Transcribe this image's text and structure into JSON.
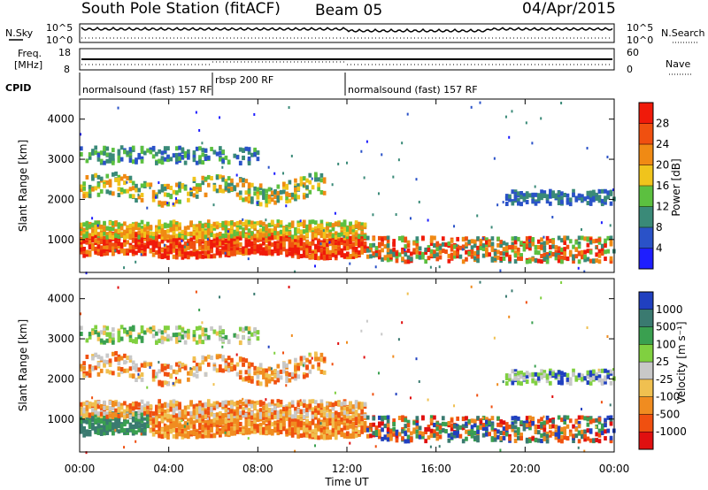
{
  "header": {
    "station": "South Pole Station (fitACF)",
    "beam": "Beam 05",
    "date": "04/Apr/2015"
  },
  "side_labels": {
    "nsky": "N.Sky",
    "freq_line1": "Freq.",
    "freq_line2": "[MHz]",
    "cpid": "CPID",
    "nsearch": "N.Search",
    "nave": "Nave"
  },
  "cpid_segments": [
    {
      "label": "normalsound (fast) 157 RF",
      "start_hour": 0
    },
    {
      "label": "rbsp 200 RF",
      "start_hour": 6
    },
    {
      "label": "normalsound (fast) 157 RF",
      "start_hour": 12
    }
  ],
  "chart_data": [
    {
      "type": "line",
      "panel": "noise",
      "y_left_ticks": [
        "10^5",
        "10^0"
      ],
      "y_right_ticks": [
        "10^5",
        "10^0"
      ],
      "xlim_hours": [
        0,
        24
      ]
    },
    {
      "type": "line",
      "panel": "frequency",
      "y_left_ticks": [
        "18",
        "8"
      ],
      "y_right_ticks": [
        "60",
        "0"
      ],
      "xlim_hours": [
        0,
        24
      ]
    },
    {
      "type": "heatmap",
      "panel": "power",
      "ylabel": "Slant Range [km]",
      "yticks": [
        1000,
        2000,
        3000,
        4000
      ],
      "ylim": [
        180,
        4500
      ],
      "xlim_hours": [
        0,
        24
      ],
      "colorbar_label": "Power [dB]",
      "colorbar_ticks": [
        "4",
        "8",
        "12",
        "16",
        "20",
        "24",
        "28"
      ],
      "colorbar_colors": [
        "#1e1eff",
        "#2a52c8",
        "#3a8a78",
        "#5cc040",
        "#f0c41c",
        "#f08a14",
        "#f05010",
        "#f01a0a"
      ]
    },
    {
      "type": "heatmap",
      "panel": "velocity",
      "ylabel": "Slant Range [km]",
      "yticks": [
        1000,
        2000,
        3000,
        4000
      ],
      "ylim": [
        180,
        4500
      ],
      "xlim_hours": [
        0,
        24
      ],
      "xlabel": "Time UT",
      "xtick_labels": [
        "00:00",
        "04:00",
        "08:00",
        "12:00",
        "16:00",
        "20:00",
        "00:00"
      ],
      "colorbar_label": "Velocity [m s⁻¹]",
      "colorbar_ticks": [
        "1000",
        "500",
        "100",
        "25",
        "-25",
        "-100",
        "-500",
        "-1000"
      ],
      "colorbar_colors": [
        "#2040c0",
        "#3a7a70",
        "#3aa050",
        "#80d040",
        "#c8c8c8",
        "#f0c050",
        "#f08c20",
        "#f05010",
        "#e01010"
      ]
    }
  ]
}
